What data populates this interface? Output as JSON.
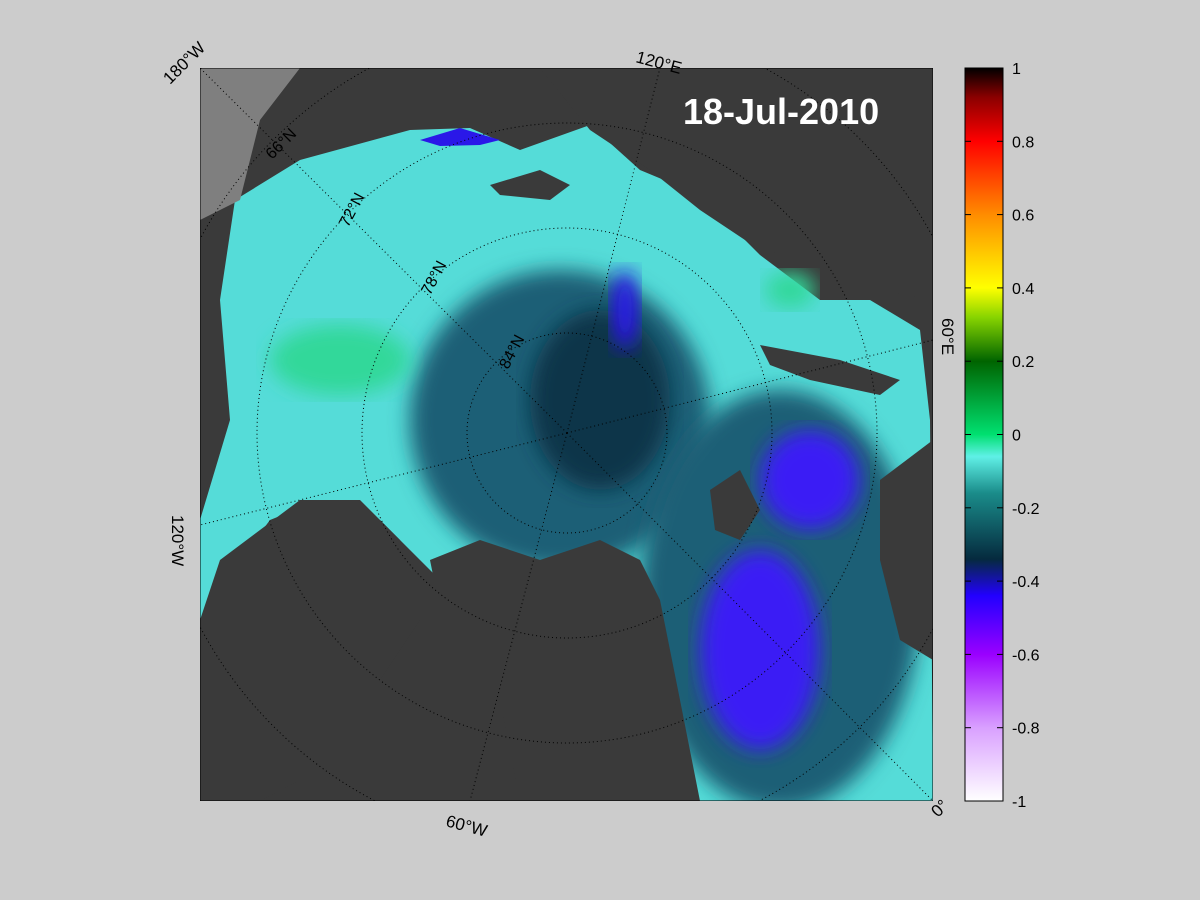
{
  "map": {
    "date_label": "18-Jul-2010",
    "projection": "north-polar-stereographic",
    "land_color": "#3a3a3a",
    "outside_color": "#7f7f7f",
    "longitude_labels": [
      "180°W",
      "120°E",
      "60°E",
      "0°",
      "60°W",
      "120°W"
    ],
    "latitude_labels": [
      "66°N",
      "72°N",
      "78°N",
      "84°N"
    ]
  },
  "colorbar": {
    "ticks": [
      "1",
      "0.8",
      "0.6",
      "0.4",
      "0.2",
      "0",
      "-0.2",
      "-0.4",
      "-0.6",
      "-0.8",
      "-1"
    ],
    "range": [
      -1,
      1
    ],
    "colormap": [
      "#ffffff",
      "#d9a0ff",
      "#9a00ff",
      "#2200ff",
      "#052a3e",
      "#1a8c8a",
      "#5ff0e6",
      "#00e070",
      "#006400",
      "#88d400",
      "#ffff00",
      "#ff8c00",
      "#ff0000",
      "#8b0000",
      "#000000"
    ]
  }
}
